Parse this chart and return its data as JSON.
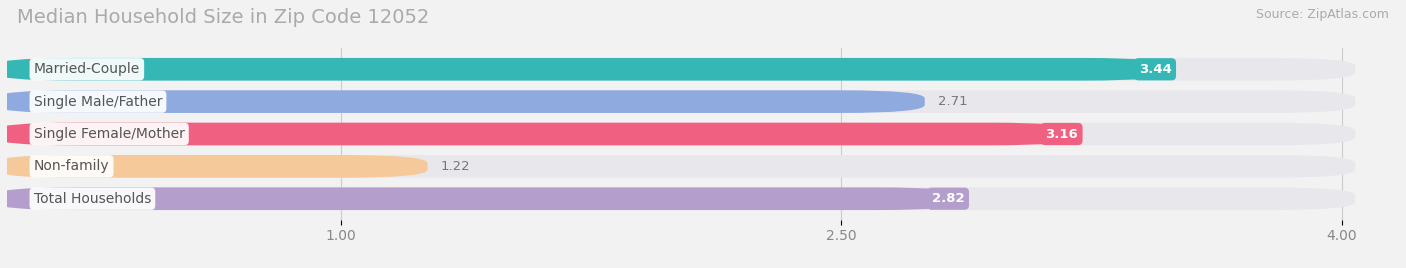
{
  "title": "Median Household Size in Zip Code 12052",
  "source": "Source: ZipAtlas.com",
  "categories": [
    "Married-Couple",
    "Single Male/Father",
    "Single Female/Mother",
    "Non-family",
    "Total Households"
  ],
  "values": [
    3.44,
    2.71,
    3.16,
    1.22,
    2.82
  ],
  "bar_colors": [
    "#35b8b5",
    "#8eaadf",
    "#f06080",
    "#f5c99a",
    "#b49fcc"
  ],
  "background_color": "#f2f2f2",
  "bar_bg_color": "#e8e8ec",
  "xlim_max": 4.15,
  "data_max": 4.0,
  "xticks": [
    1.0,
    2.5,
    4.0
  ],
  "title_fontsize": 14,
  "source_fontsize": 9,
  "label_fontsize": 10,
  "value_fontsize": 9.5,
  "bar_height": 0.62,
  "value_label_threshold": 2.5,
  "label_pill_color": "white",
  "label_text_color": "#555555"
}
